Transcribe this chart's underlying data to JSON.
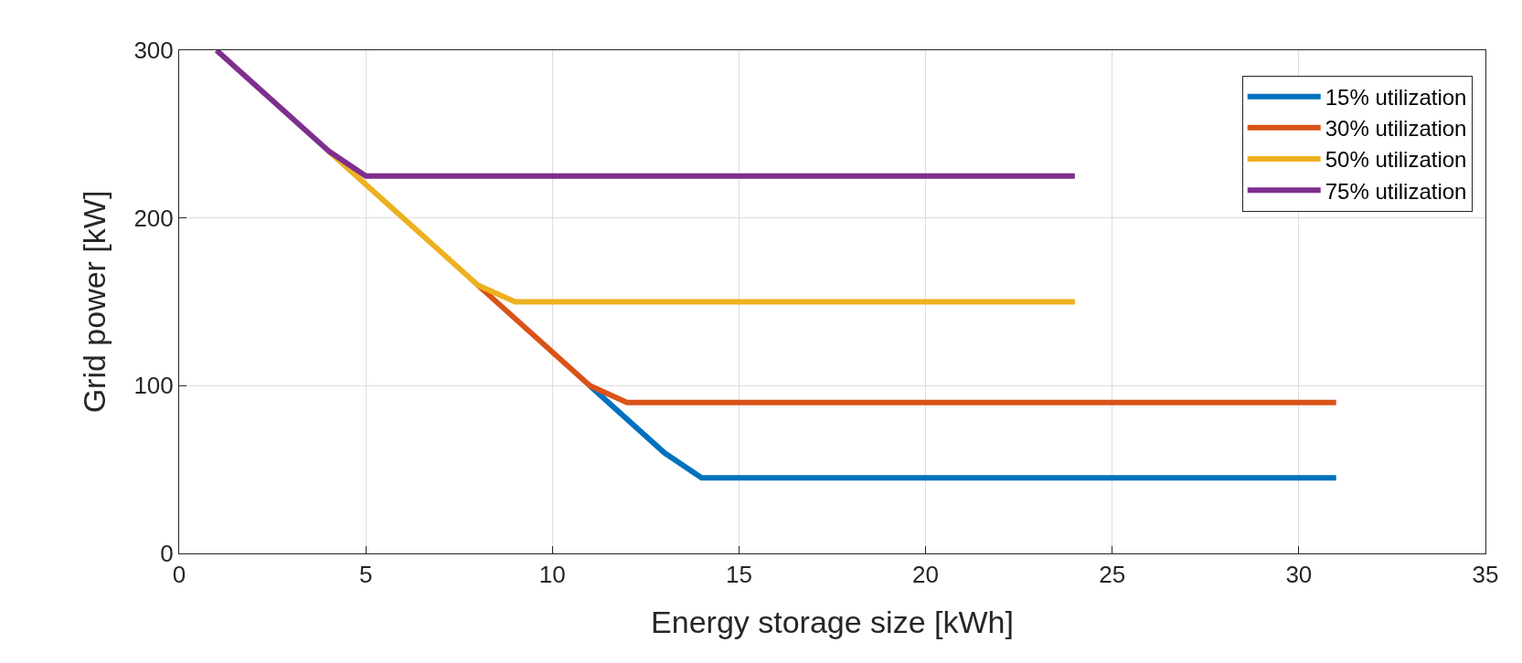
{
  "chart_data": {
    "type": "line",
    "xlabel": "Energy storage size [kWh]",
    "ylabel": "Grid power [kW]",
    "xlim": [
      0,
      35
    ],
    "xticks": [
      0,
      5,
      10,
      15,
      20,
      25,
      30,
      35
    ],
    "ylim": [
      0,
      300
    ],
    "yticks": [
      0,
      100,
      200,
      300
    ],
    "grid": true,
    "legend": "top right",
    "marker": "none",
    "line_style": "solid",
    "series": [
      {
        "name": "15% utilization",
        "color": "#0072bd",
        "x": [
          11,
          13,
          14,
          31
        ],
        "values": [
          100,
          60,
          45,
          45
        ]
      },
      {
        "name": "30% utilization",
        "color": "#d95319",
        "x": [
          8,
          11,
          12,
          31
        ],
        "values": [
          160,
          100,
          90,
          90
        ]
      },
      {
        "name": "50% utilization",
        "color": "#edb120",
        "x": [
          4,
          8,
          9,
          24
        ],
        "values": [
          240,
          160,
          150,
          150
        ]
      },
      {
        "name": "75% utilization",
        "color": "#7e2f8e",
        "x": [
          1,
          4,
          5,
          24
        ],
        "values": [
          300,
          240,
          225,
          225
        ]
      }
    ]
  }
}
